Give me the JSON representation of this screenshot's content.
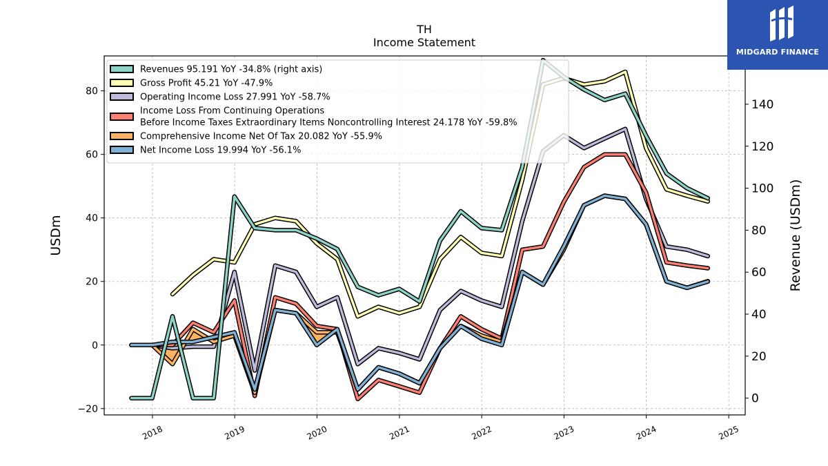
{
  "header": {
    "ticker": "TH",
    "subtitle": "Income Statement"
  },
  "logo": {
    "text": "MIDGARD FINANCE",
    "bg_color": "#2b55b0"
  },
  "chart_data": {
    "type": "line",
    "x": [
      "2017-09-30",
      "2017-12-31",
      "2018-03-31",
      "2018-06-30",
      "2018-09-30",
      "2018-12-31",
      "2019-03-31",
      "2019-06-30",
      "2019-09-30",
      "2019-12-31",
      "2020-03-31",
      "2020-06-30",
      "2020-09-30",
      "2020-12-31",
      "2021-03-31",
      "2021-06-30",
      "2021-09-30",
      "2021-12-31",
      "2022-03-31",
      "2022-06-30",
      "2022-09-30",
      "2022-12-31",
      "2023-03-31",
      "2023-06-30",
      "2023-09-30",
      "2023-12-31",
      "2024-03-31",
      "2024-06-30",
      "2024-09-30"
    ],
    "xticks": [
      "2018",
      "2019",
      "2020",
      "2021",
      "2022",
      "2023",
      "2024",
      "2025"
    ],
    "ylabel": "USDm",
    "ylabel_right": "Revenue (USDm)",
    "ylim": [
      -22,
      91
    ],
    "ylim_right": [
      -8,
      163
    ],
    "yticks": [
      -20,
      0,
      20,
      40,
      60,
      80
    ],
    "yticks_right": [
      0,
      20,
      40,
      60,
      80,
      100,
      120,
      140,
      160
    ],
    "grid": true,
    "legend_position": "top-left",
    "series": [
      {
        "name": "Revenues  95.191 YoY -34.8% (right axis)",
        "axis": "right",
        "color": "#8dd3c7",
        "values": [
          0,
          0,
          39,
          0,
          0,
          96,
          81,
          80,
          80,
          76,
          71,
          53,
          49,
          52,
          46,
          75,
          89,
          81,
          80,
          110,
          161,
          153,
          147,
          142,
          145,
          125,
          107,
          100,
          95.191
        ]
      },
      {
        "name": "Gross Profit  45.21 YoY -47.9%",
        "axis": "left",
        "color": "#ffffb3",
        "values": [
          null,
          null,
          16,
          22,
          27,
          26,
          38,
          40,
          39,
          32,
          27,
          9,
          12,
          10,
          12,
          27,
          34,
          29,
          28,
          52,
          82,
          84,
          82,
          83,
          86,
          62,
          49,
          47,
          45.21
        ]
      },
      {
        "name": "Operating Income Loss  27.991 YoY -58.7%",
        "axis": "left",
        "color": "#bebada",
        "values": [
          0,
          0,
          -1,
          -0.5,
          -0.5,
          23,
          -8,
          25,
          23,
          12,
          15,
          -6,
          -1,
          -2.5,
          -4.5,
          11,
          17,
          14,
          12,
          39,
          61,
          66,
          62,
          65,
          68,
          46,
          31,
          30,
          27.991
        ]
      },
      {
        "name": "Income Loss From Continuing Operations\nBefore Income Taxes Extraordinary Items Noncontrolling Interest  24.178 YoY -59.8%",
        "axis": "left",
        "color": "#fb8072",
        "values": [
          0,
          0,
          0,
          7,
          4,
          14,
          -16,
          15,
          13,
          6,
          5,
          -17,
          -11,
          -13,
          -15,
          -1,
          9,
          5,
          2,
          30,
          31,
          45,
          56,
          60,
          60,
          48,
          26,
          25,
          24.178
        ]
      },
      {
        "name": "Comprehensive Income Net Of Tax  20.082 YoY -55.9%",
        "axis": "left",
        "color": "#fdb462",
        "values": [
          0,
          0,
          -6,
          5,
          1,
          3,
          -15,
          11,
          10,
          4,
          4,
          -14,
          -7,
          -9,
          -12,
          -1,
          6,
          3,
          1,
          23,
          19,
          30,
          44,
          47,
          46,
          38,
          20,
          18,
          20.082
        ]
      },
      {
        "name": "Net Income Loss  19.994 YoY -56.1%",
        "axis": "left",
        "color": "#80b1d3",
        "values": [
          0,
          0,
          1,
          1,
          2.5,
          4,
          -14,
          11,
          10,
          0,
          5,
          -14,
          -7,
          -9,
          -12,
          -1,
          6,
          2,
          0,
          23,
          19,
          31,
          44,
          47,
          46,
          38,
          20,
          18,
          19.994
        ]
      }
    ]
  }
}
